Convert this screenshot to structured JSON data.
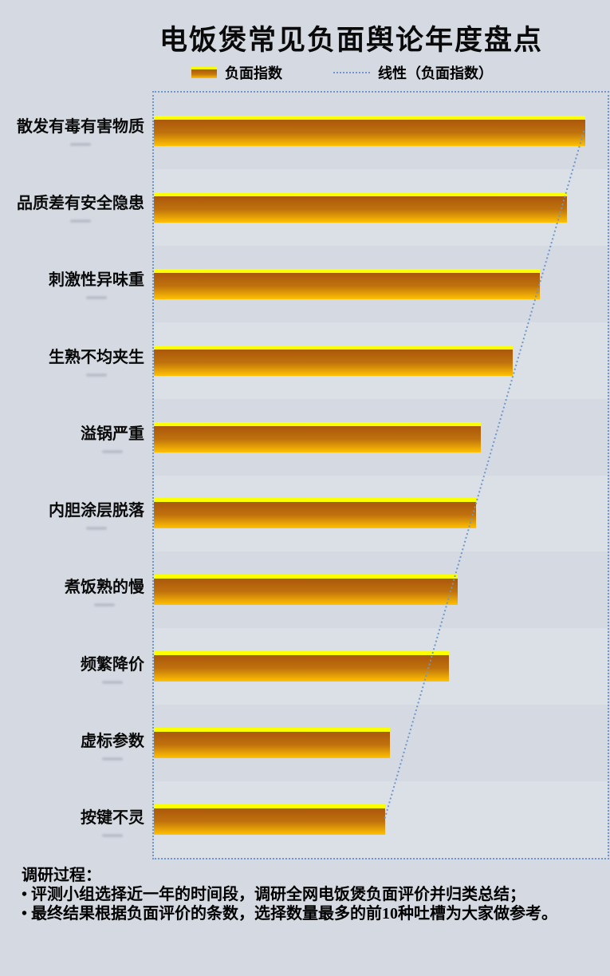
{
  "title": "电饭煲常见负面舆论年度盘点",
  "legend": {
    "bar_label": "负面指数",
    "trend_label": "线性（负面指数）"
  },
  "chart_data": {
    "type": "bar",
    "orientation": "horizontal",
    "title": "电饭煲常见负面舆论年度盘点",
    "categories": [
      "散发有毒有害物质",
      "品质差有安全隐患",
      "刺激性异味重",
      "生熟不均夹生",
      "溢锅严重",
      "内胆涂层脱落",
      "煮饭熟的慢",
      "频繁降价",
      "虚标参数",
      "按键不灵"
    ],
    "series": [
      {
        "name": "负面指数",
        "type": "bar",
        "values": [
          95,
          91,
          85,
          79,
          72,
          71,
          67,
          65,
          52,
          51
        ]
      },
      {
        "name": "线性（负面指数）",
        "type": "linear-trend"
      }
    ],
    "values": [
      95,
      91,
      85,
      79,
      72,
      71,
      67,
      65,
      52,
      51
    ],
    "xlim": [
      0,
      100
    ],
    "axis_tick_labels_visible": false,
    "grid": false,
    "legend_position": "top"
  },
  "notes": {
    "heading": "调研过程：",
    "bullets": [
      "• 评测小组选择近一年的时间段，调研全网电饭煲负面评价并归类总结；",
      "• 最终结果根据负面评价的条数，选择数量最多的前10种吐槽为大家做参考。"
    ]
  },
  "colors": {
    "background": "#d4d9e2",
    "bar_cap_yellow": "#fbff00",
    "bar_gradient_top": "#aa570c",
    "bar_gradient_bottom": "#ffc103",
    "trend_line_blue": "#6f98c9",
    "text": "#0a0a0a"
  }
}
